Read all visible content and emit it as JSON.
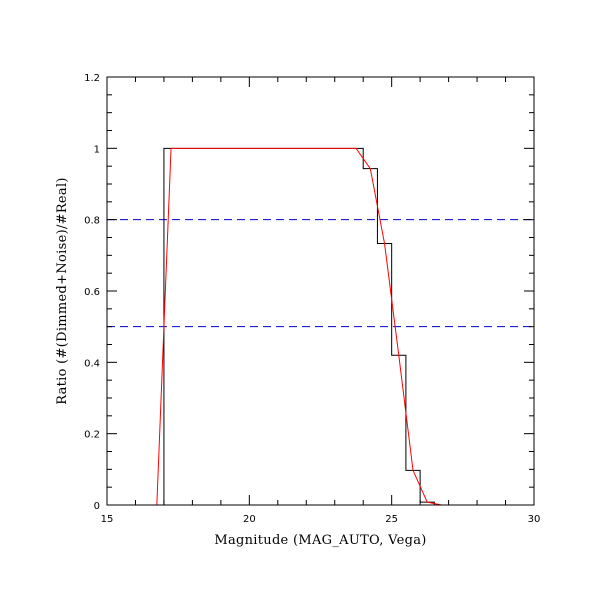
{
  "chart_data": {
    "type": "line",
    "title": "",
    "xlabel": "Magnitude (MAG_AUTO, Vega)",
    "ylabel": "Ratio (#(Dimmed+Noise)/#Real)",
    "xlim": [
      15,
      30
    ],
    "ylim": [
      0,
      1.2
    ],
    "x_ticks": [
      "15",
      "20",
      "25",
      "30"
    ],
    "y_ticks": [
      "0",
      "0.2",
      "0.4",
      "0.6",
      "0.8",
      "1",
      "1.2"
    ],
    "x_tick_values": [
      15,
      20,
      25,
      30
    ],
    "y_tick_values": [
      0,
      0.2,
      0.4,
      0.6,
      0.8,
      1.0,
      1.2
    ],
    "grid": false,
    "series": [
      {
        "style": "step",
        "color": "#000000",
        "x": [
          15,
          17.0,
          17.0,
          17.5,
          18.0,
          18.5,
          19.0,
          19.5,
          20.0,
          20.5,
          21.0,
          21.5,
          22.0,
          22.5,
          23.0,
          23.5,
          24.0,
          24.5,
          25.0,
          25.5,
          26.0,
          26.5,
          27.0,
          27.5,
          28.0,
          28.5,
          29.0,
          29.5,
          30.0
        ],
        "y": [
          0,
          0,
          1.0,
          1.0,
          1.0,
          1.0,
          1.0,
          1.0,
          1.0,
          1.0,
          1.0,
          1.0,
          1.0,
          1.0,
          1.0,
          1.0,
          0.943,
          0.733,
          0.42,
          0.097,
          0.008,
          0.0,
          0.0,
          0.0,
          0.0,
          0.0,
          0.0,
          0.0,
          0.0
        ]
      },
      {
        "style": "line",
        "color": "#ff0000",
        "x": [
          16.75,
          17.25,
          23.75,
          24.25,
          24.75,
          25.25,
          25.75,
          26.25,
          26.75,
          27.25,
          27.75,
          28.25,
          28.75,
          29.25,
          29.75,
          30.0
        ],
        "y": [
          0.0,
          1.0,
          1.0,
          0.943,
          0.733,
          0.42,
          0.097,
          0.008,
          0.0,
          0.0,
          0.0,
          0.0,
          0.0,
          0.0,
          0.0,
          0.0
        ]
      }
    ],
    "reference_lines": [
      {
        "axis": "y",
        "value": 0.8,
        "color": "#0000cc",
        "style": "dashed"
      },
      {
        "axis": "y",
        "value": 0.5,
        "color": "#0000cc",
        "style": "dashed"
      }
    ]
  }
}
